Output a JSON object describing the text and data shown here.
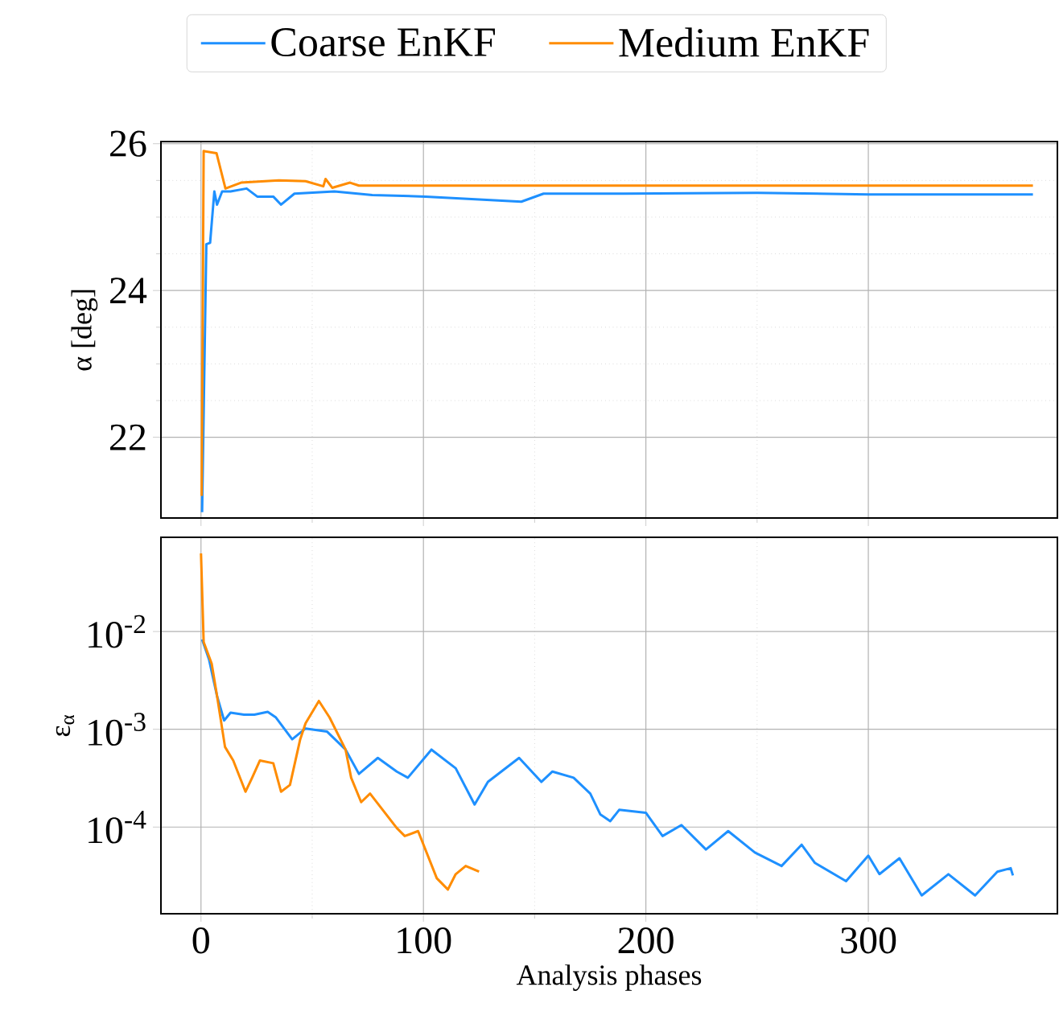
{
  "chart_data": [
    {
      "type": "line",
      "ylabel": "α [deg]",
      "xlim": [
        -18,
        385
      ],
      "ylim": [
        20.9,
        26.03
      ],
      "xticks": [
        0,
        100,
        200,
        300
      ],
      "yticks": [
        22,
        24,
        26
      ],
      "tick_labels": "y",
      "grid": true,
      "legend": "top",
      "line_style": "solid",
      "series": [
        {
          "name": "Coarse EnKF",
          "color": "#1e90ff",
          "x": [
            0.5,
            2.4,
            4.1,
            6,
            7.2,
            9.5,
            13.3,
            20.5,
            25.3,
            32.5,
            36,
            42,
            60,
            77,
            101,
            144,
            154,
            190,
            250,
            300,
            374
          ],
          "values": [
            20.98,
            24.63,
            24.65,
            25.35,
            25.17,
            25.35,
            25.35,
            25.39,
            25.28,
            25.28,
            25.17,
            25.32,
            25.35,
            25.3,
            25.28,
            25.21,
            25.32,
            25.32,
            25.33,
            25.31,
            25.31
          ]
        },
        {
          "name": "Medium EnKF",
          "color": "#ff8c00",
          "x": [
            0.3,
            1.2,
            7,
            11,
            18,
            35,
            47,
            55,
            56,
            59,
            67,
            71,
            100,
            200,
            374
          ],
          "values": [
            21.2,
            25.9,
            25.87,
            25.39,
            25.47,
            25.5,
            25.49,
            25.42,
            25.52,
            25.4,
            25.47,
            25.43,
            25.43,
            25.43,
            25.43
          ]
        }
      ]
    },
    {
      "type": "line",
      "xlabel": "Analysis phases",
      "ylabel": "ε$_{α}$",
      "log": "y",
      "xlim": [
        -18,
        385
      ],
      "ylim": [
        1.3e-05,
        0.092
      ],
      "xticks": [
        0,
        100,
        200,
        300
      ],
      "yticks": [
        {
          "value": 0.01,
          "label": "10$^{-2}$"
        },
        {
          "value": 0.001,
          "label": "10$^{-3}$"
        },
        {
          "value": 0.0001,
          "label": "10$^{-4}$"
        }
      ],
      "grid": true,
      "line_style": "solid",
      "series": [
        {
          "color": "#1e90ff",
          "x": [
            0.5,
            3.6,
            7.2,
            10.4,
            13.3,
            19.3,
            24,
            30,
            33.7,
            41,
            47,
            56.6,
            65,
            71,
            79.5,
            88,
            93,
            103.6,
            114.5,
            123,
            129,
            143,
            153,
            158,
            167.5,
            175,
            179.5,
            184,
            188,
            200,
            207.5,
            216,
            227,
            237,
            249,
            261,
            270,
            276,
            290,
            300,
            305,
            314,
            324,
            336,
            348,
            358,
            364,
            365
          ],
          "values": [
            0.0083,
            0.0052,
            0.0022,
            0.00123,
            0.00148,
            0.00141,
            0.00141,
            0.00151,
            0.00132,
            0.00079,
            0.00102,
            0.00095,
            0.00062,
            0.00035,
            0.00051,
            0.00037,
            0.00032,
            0.00062,
            0.0004,
            0.00017,
            0.00029,
            0.00051,
            0.00029,
            0.00037,
            0.00032,
            0.00022,
            0.000135,
            0.000115,
            0.00015,
            0.00014,
            8.1e-05,
            0.000105,
            5.9e-05,
            9.1e-05,
            5.5e-05,
            4e-05,
            6.6e-05,
            4.3e-05,
            2.8e-05,
            5.1e-05,
            3.3e-05,
            4.8e-05,
            2e-05,
            3.3e-05,
            2e-05,
            3.5e-05,
            3.8e-05,
            3.2e-05
          ]
        },
        {
          "color": "#ff8c00",
          "x": [
            0,
            1.2,
            4.8,
            7.2,
            10.8,
            14.5,
            20,
            23,
            26.5,
            32.5,
            36,
            40,
            44.6,
            47,
            53,
            57.8,
            65,
            67.5,
            72,
            76,
            80.7,
            88,
            91.6,
            97.6,
            106,
            111,
            114.5,
            119,
            125
          ],
          "values": [
            0.063,
            0.0078,
            0.0047,
            0.0022,
            0.00066,
            0.00048,
            0.00023,
            0.00032,
            0.00048,
            0.00045,
            0.00023,
            0.00027,
            0.00079,
            0.00115,
            0.00195,
            0.00132,
            0.00062,
            0.00032,
            0.00018,
            0.00022,
            0.00016,
            9.8e-05,
            8.1e-05,
            9.1e-05,
            3e-05,
            2.3e-05,
            3.3e-05,
            4e-05,
            3.5e-05
          ]
        }
      ]
    }
  ]
}
